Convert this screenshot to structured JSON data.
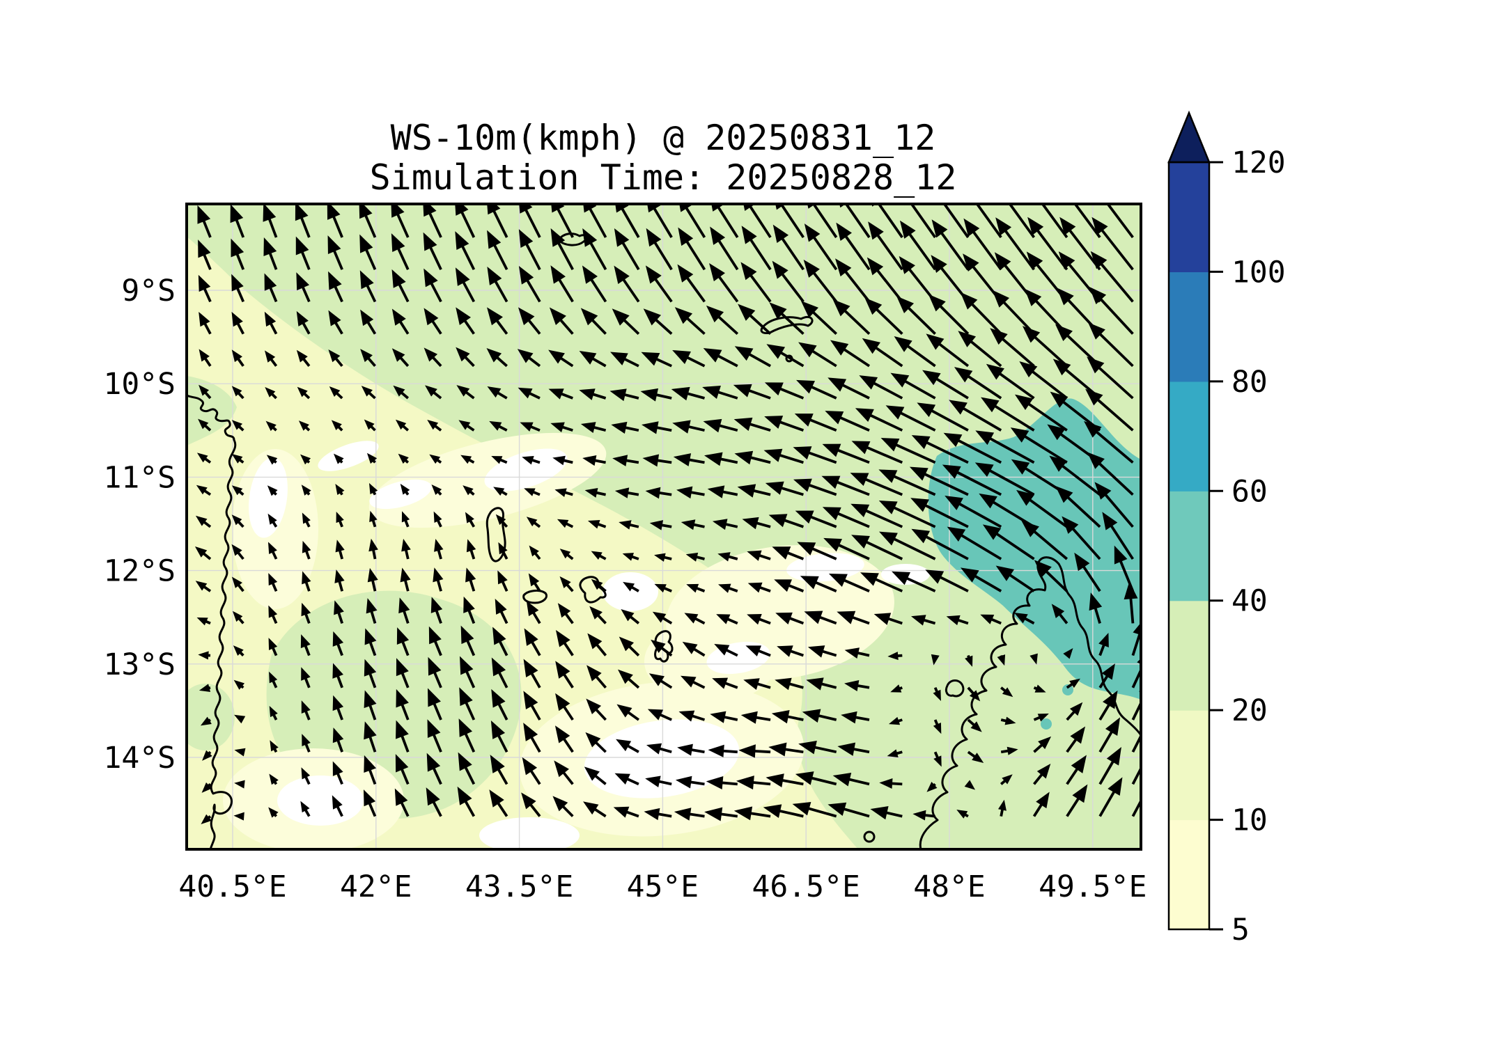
{
  "title": {
    "line1": "WS-10m(kmph) @ 20250831_12",
    "line2": "Simulation Time: 20250828_12"
  },
  "axes": {
    "x_ticks": [
      {
        "label": "40.5°E",
        "lon": 40.5
      },
      {
        "label": "42°E",
        "lon": 42.0
      },
      {
        "label": "43.5°E",
        "lon": 43.5
      },
      {
        "label": "45°E",
        "lon": 45.0
      },
      {
        "label": "46.5°E",
        "lon": 46.5
      },
      {
        "label": "48°E",
        "lon": 48.0
      },
      {
        "label": "49.5°E",
        "lon": 49.5
      }
    ],
    "y_ticks": [
      {
        "label": "9°S",
        "lat_s": 9
      },
      {
        "label": "10°S",
        "lat_s": 10
      },
      {
        "label": "11°S",
        "lat_s": 11
      },
      {
        "label": "12°S",
        "lat_s": 12
      },
      {
        "label": "13°S",
        "lat_s": 13
      },
      {
        "label": "14°S",
        "lat_s": 14
      }
    ]
  },
  "colorbar": {
    "levels": [
      5,
      10,
      20,
      40,
      60,
      80,
      100,
      120
    ],
    "tick_labels": [
      "5",
      "10",
      "20",
      "40",
      "60",
      "80",
      "100",
      "120"
    ],
    "segment_colors": [
      "#fdfdd0",
      "#f0f9c4",
      "#d6eeb7",
      "#6fc9bb",
      "#35aac5",
      "#2b7cb8",
      "#24419b"
    ],
    "over_color": "#0d1f5c",
    "outline_color": "#000000"
  },
  "chart_data": {
    "type": "heatmap",
    "title": "WS-10m(kmph) @ 20250831_12",
    "subtitle": "Simulation Time: 20250828_12",
    "variable": "WS-10m",
    "units": "kmph",
    "valid_time": "20250831_12",
    "simulation_time": "20250828_12",
    "extent": {
      "lon_min": 40.0,
      "lon_max": 50.0,
      "lat_south_min": 8.1,
      "lat_south_max": 14.9
    },
    "contour_levels": [
      5,
      10,
      20,
      40,
      60,
      80,
      100,
      120
    ],
    "fill_colors": {
      "under_5": "#ffffff",
      "5_10": "#fcfdda",
      "10_20": "#f4f9c5",
      "20_40": "#d6eeb8",
      "40_60": "#68c6b8"
    },
    "legend_position": "right",
    "grid": true,
    "wind_field": {
      "comment_free": "coarse sampled 10m wind vectors; u eastward kmph, v northward kmph; rows ordered north to south",
      "lons": [
        40,
        41,
        42,
        43,
        44,
        45,
        46,
        47,
        48,
        49,
        50
      ],
      "lats_south": [
        8,
        9,
        10,
        11,
        12,
        13,
        14,
        15
      ],
      "u_kmph": [
        [
          -8,
          -8,
          -10,
          -12,
          -14,
          -16,
          -18,
          -20,
          -22,
          -24,
          -24
        ],
        [
          -7,
          -7,
          -9,
          -11,
          -13,
          -15,
          -17,
          -20,
          -22,
          -24,
          -26
        ],
        [
          -6,
          -6,
          -8,
          -10,
          -14,
          -18,
          -22,
          -24,
          -26,
          -28,
          -28
        ],
        [
          -8,
          -4,
          -3,
          -6,
          -10,
          -16,
          -20,
          -28,
          -36,
          -38,
          -30
        ],
        [
          -10,
          -4,
          -2,
          -3,
          -6,
          -8,
          -10,
          -26,
          -36,
          -30,
          -16
        ],
        [
          -6,
          -4,
          -6,
          -8,
          -10,
          -12,
          -14,
          -16,
          6,
          4,
          10
        ],
        [
          -4,
          -3,
          -6,
          -9,
          -10,
          -14,
          -18,
          -24,
          8,
          10,
          14
        ],
        [
          -5,
          -4,
          -7,
          -10,
          -12,
          -16,
          -22,
          -30,
          -20,
          12,
          16
        ]
      ],
      "v_kmph": [
        [
          20,
          22,
          24,
          26,
          28,
          28,
          28,
          30,
          32,
          34,
          34
        ],
        [
          16,
          18,
          20,
          22,
          24,
          24,
          26,
          28,
          30,
          32,
          32
        ],
        [
          8,
          6,
          7,
          8,
          6,
          4,
          8,
          12,
          16,
          22,
          26
        ],
        [
          5,
          3,
          4,
          3,
          2,
          2,
          4,
          10,
          16,
          20,
          26
        ],
        [
          6,
          10,
          12,
          12,
          6,
          2,
          3,
          12,
          18,
          22,
          30
        ],
        [
          -4,
          10,
          16,
          18,
          16,
          10,
          6,
          4,
          -8,
          -6,
          24
        ],
        [
          -8,
          6,
          18,
          20,
          16,
          4,
          0,
          6,
          -10,
          12,
          28
        ],
        [
          -6,
          4,
          14,
          16,
          10,
          2,
          4,
          10,
          6,
          18,
          30
        ]
      ]
    }
  }
}
